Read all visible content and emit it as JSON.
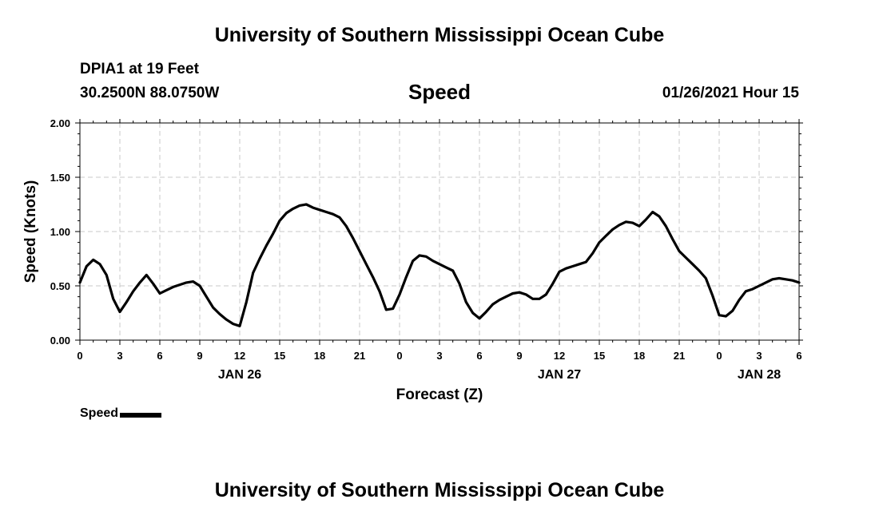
{
  "header": {
    "title": "University of Southern Mississippi Ocean Cube",
    "station": "DPIA1 at 19 Feet",
    "coords": "30.2500N 88.0750W",
    "datetime": "01/26/2021 Hour 15"
  },
  "footer": {
    "title": "University of Southern Mississippi Ocean Cube"
  },
  "chart_data": {
    "type": "line",
    "title": "Speed",
    "xlabel": "Forecast (Z)",
    "ylabel": "Speed (Knots)",
    "xlim": [
      0,
      54
    ],
    "ylim": [
      0,
      2
    ],
    "grid": true,
    "legend_position": "bottom-left",
    "x_ticks": [
      "0",
      "3",
      "6",
      "9",
      "12",
      "15",
      "18",
      "21",
      "0",
      "3",
      "6",
      "9",
      "12",
      "15",
      "18",
      "21",
      "0",
      "3",
      "6"
    ],
    "y_ticks": [
      "0.00",
      "0.50",
      "1.00",
      "1.50",
      "2.00"
    ],
    "date_labels": [
      {
        "label": "JAN 26",
        "x": 12
      },
      {
        "label": "JAN 27",
        "x": 36
      },
      {
        "label": "JAN 28",
        "x": 51
      }
    ],
    "series": [
      {
        "name": "Speed",
        "color": "#000000",
        "x": [
          0,
          0.5,
          1,
          1.5,
          2,
          2.5,
          3,
          3.5,
          4,
          4.5,
          5,
          5.5,
          6,
          6.5,
          7,
          7.5,
          8,
          8.5,
          9,
          9.5,
          10,
          10.5,
          11,
          11.5,
          12,
          12.5,
          13,
          13.5,
          14,
          14.5,
          15,
          15.5,
          16,
          16.5,
          17,
          17.5,
          18,
          18.5,
          19,
          19.5,
          20,
          20.5,
          21,
          21.5,
          22,
          22.5,
          23,
          23.5,
          24,
          24.5,
          25,
          25.5,
          26,
          26.5,
          27,
          27.5,
          28,
          28.5,
          29,
          29.5,
          30,
          30.5,
          31,
          31.5,
          32,
          32.5,
          33,
          33.5,
          34,
          34.5,
          35,
          35.5,
          36,
          36.5,
          37,
          37.5,
          38,
          38.5,
          39,
          39.5,
          40,
          40.5,
          41,
          41.5,
          42,
          42.5,
          43,
          43.5,
          44,
          44.5,
          45,
          45.5,
          46,
          46.5,
          47,
          47.5,
          48,
          48.5,
          49,
          49.5,
          50,
          50.5,
          51,
          51.5,
          52,
          52.5,
          53,
          53.5,
          54
        ],
        "y": [
          0.53,
          0.68,
          0.74,
          0.7,
          0.6,
          0.38,
          0.26,
          0.35,
          0.45,
          0.53,
          0.6,
          0.52,
          0.43,
          0.46,
          0.49,
          0.51,
          0.53,
          0.54,
          0.5,
          0.4,
          0.3,
          0.24,
          0.19,
          0.15,
          0.13,
          0.35,
          0.62,
          0.75,
          0.87,
          0.98,
          1.1,
          1.17,
          1.21,
          1.24,
          1.25,
          1.22,
          1.2,
          1.18,
          1.16,
          1.13,
          1.05,
          0.94,
          0.82,
          0.7,
          0.58,
          0.45,
          0.28,
          0.29,
          0.42,
          0.58,
          0.73,
          0.78,
          0.77,
          0.73,
          0.7,
          0.67,
          0.64,
          0.52,
          0.35,
          0.25,
          0.2,
          0.26,
          0.33,
          0.37,
          0.4,
          0.43,
          0.44,
          0.42,
          0.38,
          0.38,
          0.42,
          0.52,
          0.63,
          0.66,
          0.68,
          0.7,
          0.72,
          0.8,
          0.9,
          0.96,
          1.02,
          1.06,
          1.09,
          1.08,
          1.05,
          1.11,
          1.18,
          1.14,
          1.05,
          0.93,
          0.82,
          0.76,
          0.7,
          0.64,
          0.57,
          0.41,
          0.23,
          0.22,
          0.27,
          0.37,
          0.45,
          0.47,
          0.5,
          0.53,
          0.56,
          0.57,
          0.56,
          0.55,
          0.53
        ]
      }
    ]
  }
}
